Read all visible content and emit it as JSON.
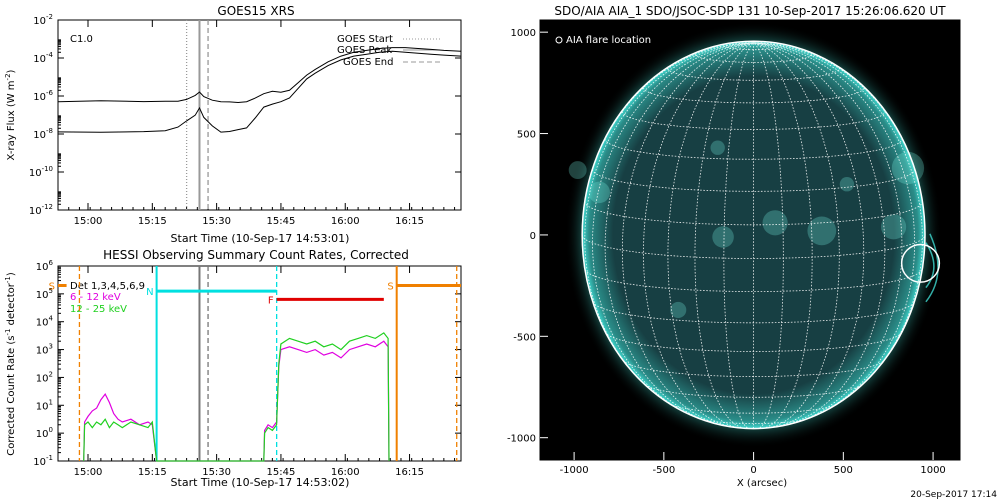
{
  "chart_data": [
    {
      "type": "line",
      "title": "GOES15 XRS",
      "ylabel": "X-ray Flux (W m",
      "ylabel_sup": "-2",
      "ylabel_end": ")",
      "xlabel": "Start Time (10-Sep-17 14:53:01)",
      "annotation": "C1.0",
      "x_ticks": [
        "15:00",
        "15:15",
        "15:30",
        "15:45",
        "16:00",
        "16:15"
      ],
      "x_tick_minutes": [
        7,
        22,
        37,
        52,
        67,
        82
      ],
      "xlim_minutes": [
        0,
        94
      ],
      "y_log": true,
      "ylim_exp": [
        -12,
        -2
      ],
      "y_tick_exps": [
        -12,
        -10,
        -8,
        -6,
        -4,
        -2
      ],
      "legend": [
        "GOES Start",
        "GOES Peak",
        "GOES End"
      ],
      "vlines": [
        {
          "name": "GOES Start",
          "minute": 30,
          "style": "dotted"
        },
        {
          "name": "GOES Peak",
          "minute": 33,
          "style": "solid"
        },
        {
          "name": "GOES End",
          "minute": 35,
          "style": "dashed"
        }
      ],
      "series": [
        {
          "x": [
            0,
            10,
            20,
            25,
            28,
            30,
            32,
            33,
            34,
            36,
            38,
            40,
            42,
            44,
            46,
            48,
            50,
            52,
            54,
            56,
            58,
            60,
            63,
            66,
            69,
            72,
            75,
            78,
            81,
            84,
            87,
            90,
            94
          ],
          "y_exp": [
            -6.3,
            -6.3,
            -6.3,
            -6.3,
            -6.3,
            -6.2,
            -6.0,
            -5.8,
            -6.0,
            -6.2,
            -6.3,
            -6.3,
            -6.3,
            -6.3,
            -6.1,
            -5.9,
            -5.8,
            -5.8,
            -5.7,
            -5.3,
            -4.9,
            -4.6,
            -4.2,
            -3.9,
            -3.7,
            -3.6,
            -3.5,
            -3.45,
            -3.45,
            -3.5,
            -3.55,
            -3.6,
            -3.65
          ]
        },
        {
          "x": [
            0,
            10,
            20,
            25,
            28,
            30,
            32,
            33,
            34,
            36,
            38,
            40,
            42,
            44,
            46,
            48,
            50,
            52,
            54,
            56,
            58,
            60,
            63,
            66,
            69,
            72,
            75,
            78,
            81,
            84,
            87,
            90,
            94
          ],
          "y_exp": [
            -7.9,
            -7.9,
            -7.85,
            -7.8,
            -7.6,
            -7.3,
            -7.0,
            -6.6,
            -7.1,
            -7.6,
            -7.9,
            -7.9,
            -7.8,
            -7.7,
            -7.2,
            -6.6,
            -6.4,
            -6.3,
            -6.1,
            -5.6,
            -5.1,
            -4.8,
            -4.4,
            -4.1,
            -3.9,
            -3.8,
            -3.7,
            -3.65,
            -3.7,
            -3.75,
            -3.8,
            -3.85,
            -3.9
          ]
        }
      ]
    },
    {
      "type": "line",
      "title": "HESSI Observing Summary Count Rates, Corrected",
      "ylabel": "Corrected Count Rate (s",
      "ylabel_sup": "-1",
      "ylabel_mid": " detector",
      "ylabel_sup2": "-1",
      "ylabel_end": ")",
      "xlabel": "Start Time (10-Sep-17 14:53:02)",
      "x_ticks": [
        "15:00",
        "15:15",
        "15:30",
        "15:45",
        "16:00",
        "16:15"
      ],
      "x_tick_minutes": [
        7,
        22,
        37,
        52,
        67,
        82
      ],
      "xlim_minutes": [
        0,
        94
      ],
      "y_log": true,
      "ylim_exp": [
        -1,
        6
      ],
      "y_tick_exps": [
        -1,
        0,
        1,
        2,
        3,
        4,
        5,
        6
      ],
      "legend": [
        {
          "label": "Det 1,3,4,5,6,9",
          "color": "#000000"
        },
        {
          "label": "6 - 12 keV",
          "color": "#e000e0"
        },
        {
          "label": "12 - 25 keV",
          "color": "#20d020"
        }
      ],
      "flags": [
        {
          "label": "S",
          "color": "#f08000",
          "x_from": 0,
          "x_to": 2,
          "y_exp": 5.3
        },
        {
          "label": "S",
          "color": "#f08000",
          "x_from": 79,
          "x_to": 94,
          "y_exp": 5.3
        },
        {
          "label": "N",
          "color": "#00e0e0",
          "x_from": 23,
          "x_to": 51,
          "y_exp": 5.1
        },
        {
          "label": "F",
          "color": "#e00000",
          "x_from": 51,
          "x_to": 76,
          "y_exp": 4.8
        }
      ],
      "vlines": [
        {
          "minute": 5,
          "color": "#f08000",
          "style": "dashed"
        },
        {
          "minute": 23,
          "color": "#00e0e0",
          "style": "solid"
        },
        {
          "minute": 33,
          "color": "#777777",
          "style": "solid"
        },
        {
          "minute": 35,
          "color": "#777777",
          "style": "dashed"
        },
        {
          "minute": 51,
          "color": "#00e0e0",
          "style": "dashed"
        },
        {
          "minute": 79,
          "color": "#f08000",
          "style": "solid"
        },
        {
          "minute": 93,
          "color": "#f08000",
          "style": "dashed"
        }
      ],
      "series": [
        {
          "label": "6 - 12 keV",
          "color": "#e000e0",
          "x": [
            6,
            6.2,
            7,
            8,
            9,
            10,
            11,
            12,
            13,
            14,
            15,
            17,
            19,
            21,
            22,
            23,
            24,
            26,
            28,
            30,
            31,
            31.5,
            48,
            48.2,
            49,
            50,
            51,
            51.5,
            52,
            54,
            56,
            58,
            60,
            62,
            64,
            66,
            68,
            70,
            72,
            74,
            76,
            77,
            77.2
          ],
          "y_exp": [
            -1,
            0.4,
            0.6,
            0.8,
            0.9,
            1.2,
            1.4,
            1.1,
            0.7,
            0.5,
            0.4,
            0.5,
            0.3,
            0.4,
            0.3,
            -1,
            -1,
            -1,
            -1,
            -1,
            -1,
            -1,
            -1,
            0.1,
            0.3,
            0.2,
            0.4,
            2.4,
            3.0,
            3.1,
            3.0,
            2.9,
            3.0,
            2.8,
            2.9,
            2.7,
            3.0,
            3.1,
            3.2,
            3.1,
            3.3,
            3.1,
            -1
          ]
        },
        {
          "label": "12 - 25 keV",
          "color": "#20d020",
          "x": [
            6,
            6.2,
            7,
            8,
            9,
            10,
            11,
            12,
            13,
            14,
            15,
            17,
            19,
            21,
            22,
            23,
            24,
            26,
            28,
            30,
            31,
            31.5,
            48,
            48.2,
            49,
            50,
            51,
            51.5,
            52,
            54,
            56,
            58,
            60,
            62,
            64,
            66,
            68,
            70,
            72,
            74,
            76,
            77,
            77.2
          ],
          "y_exp": [
            -1,
            0.3,
            0.4,
            0.2,
            0.4,
            0.3,
            0.5,
            0.2,
            0.4,
            0.3,
            0.2,
            0.4,
            0.3,
            0.2,
            0.4,
            -1,
            -1,
            -1,
            -1,
            -1,
            -1,
            -1,
            -1,
            0.0,
            0.2,
            0.1,
            0.3,
            2.5,
            3.2,
            3.4,
            3.3,
            3.2,
            3.3,
            3.1,
            3.2,
            3.0,
            3.3,
            3.4,
            3.5,
            3.4,
            3.6,
            3.4,
            -1
          ]
        }
      ]
    },
    {
      "type": "image",
      "title": "SDO/AIA AIA_1 SDO/JSOC-SDP 131 10-Sep-2017 15:26:06.620 UT",
      "legend_label": "AIA flare location",
      "xlabel": "X (arcsec)",
      "x_ticks": [
        -1000,
        -500,
        0,
        500,
        1000
      ],
      "y_ticks": [
        -1000,
        -500,
        0,
        500,
        1000
      ],
      "xlim": [
        -1190,
        1150
      ],
      "ylim": [
        -1110,
        1060
      ],
      "solar_radius_arcsec": 955,
      "flare_location": [
        930,
        -140
      ],
      "flare_radius_arcsec": 105,
      "colors": {
        "disk": "#173f43",
        "limb": "#3fd8cf",
        "bright": "#9ffff3"
      }
    }
  ],
  "footer": {
    "datestamp": "20-Sep-2017 17:14"
  }
}
